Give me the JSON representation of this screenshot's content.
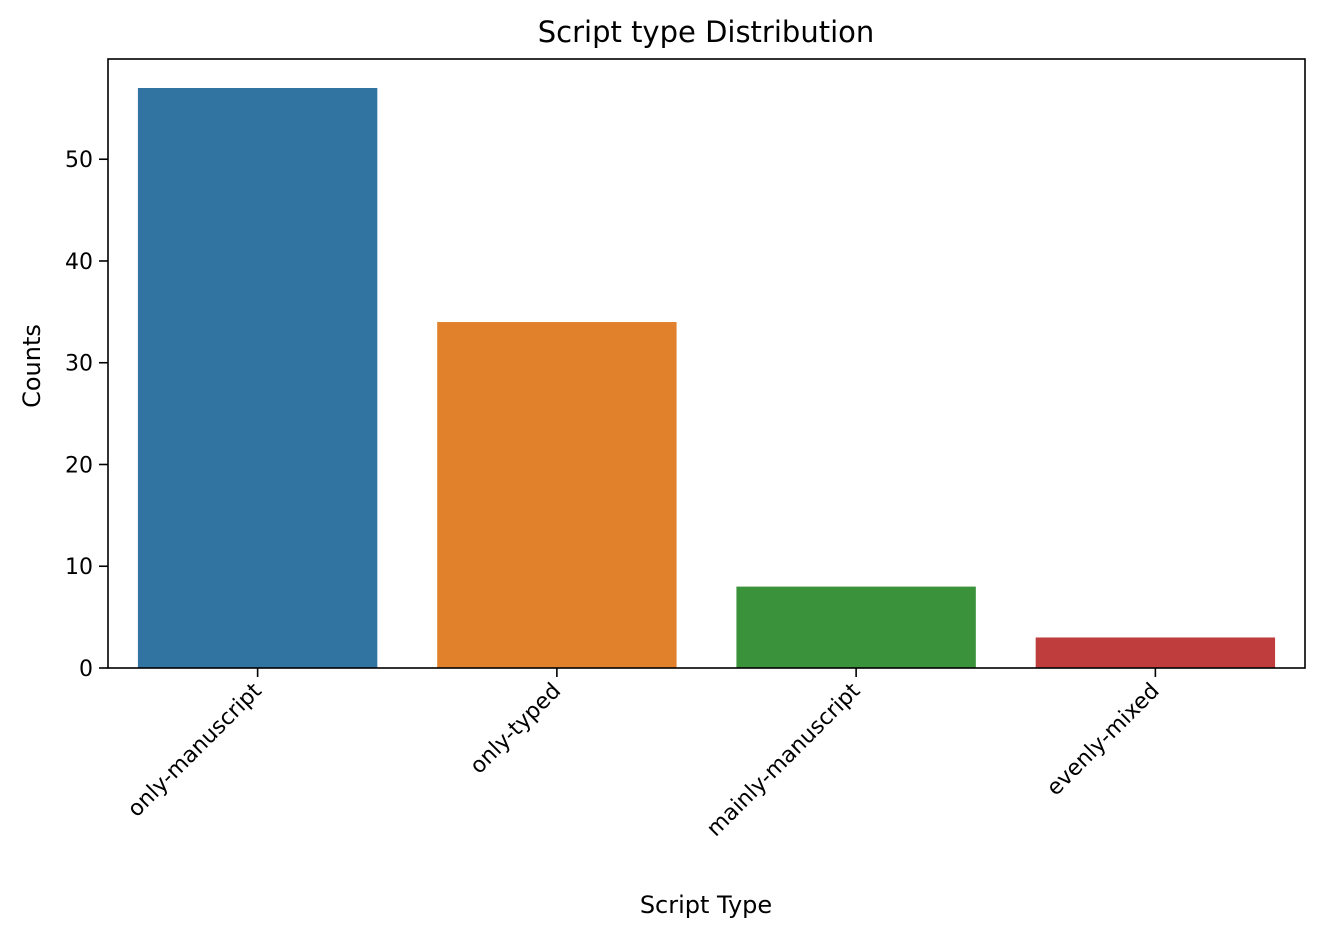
{
  "chart_data": {
    "type": "bar",
    "title": "Script type Distribution",
    "xlabel": "Script Type",
    "ylabel": "Counts",
    "categories": [
      "only-manuscript",
      "only-typed",
      "mainly-manuscript",
      "evenly-mixed"
    ],
    "values": [
      57,
      34,
      8,
      3
    ],
    "colors": [
      "#3274a1",
      "#e1812c",
      "#3a923a",
      "#c03d3e"
    ],
    "ylim": [
      0,
      59.85
    ],
    "yticks": [
      0,
      10,
      20,
      30,
      40,
      50
    ],
    "grid": false,
    "legend": "none"
  }
}
